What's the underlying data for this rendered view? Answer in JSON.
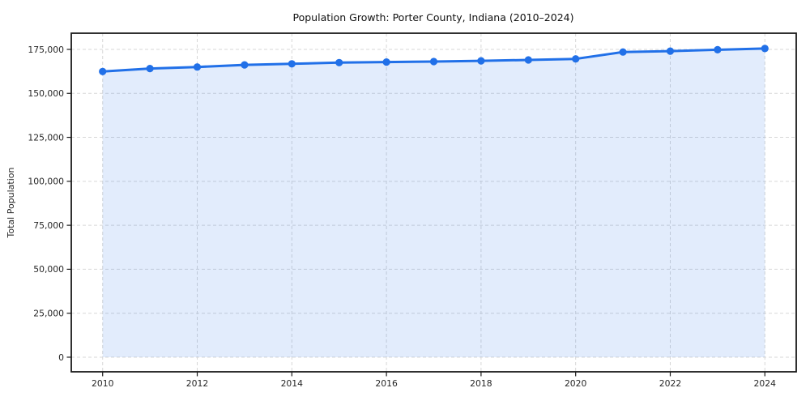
{
  "figure": {
    "background": "#ffffff"
  },
  "chart_data": {
    "type": "line",
    "title": "Population Growth: Porter County, Indiana (2010–2024)",
    "xlabel": "",
    "ylabel": "Total Population",
    "x": [
      2010,
      2011,
      2012,
      2013,
      2014,
      2015,
      2016,
      2017,
      2018,
      2019,
      2020,
      2021,
      2022,
      2023,
      2024
    ],
    "series": [
      {
        "name": "Total Population",
        "values": [
          162400,
          164100,
          165000,
          166200,
          166800,
          167500,
          167800,
          168100,
          168500,
          169000,
          169600,
          173500,
          174000,
          174800,
          175500
        ]
      }
    ],
    "xticks": [
      2010,
      2012,
      2014,
      2016,
      2018,
      2020,
      2022,
      2024
    ],
    "yticks": [
      0,
      25000,
      50000,
      75000,
      100000,
      125000,
      150000,
      175000
    ],
    "xlim": [
      2009.337,
      2024.663
    ],
    "ylim": [
      -8300,
      184200
    ],
    "grid": true,
    "grid_style": "dashed",
    "legend": false,
    "marker": "circle",
    "colors": {
      "line": "#2170e8",
      "marker": "#2170e8",
      "fill": "rgba(33, 112, 232, 0.13)",
      "grid": "#d7d7d7",
      "spine": "#1a1a1a",
      "text": "#262626",
      "title": "#111111",
      "background": "#ffffff"
    }
  }
}
